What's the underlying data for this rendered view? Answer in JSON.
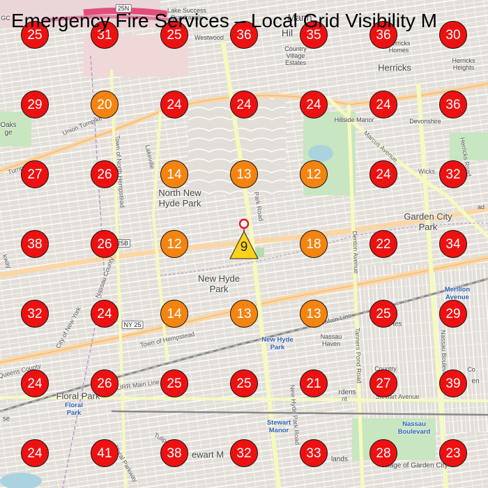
{
  "title": "Emergency Fire Services – Local Grid Visibility M",
  "colors": {
    "high": "#ee1111",
    "medium": "#f5840f",
    "station": "#ffd21a",
    "station_pin": "#d41a2c"
  },
  "grid": {
    "rows": [
      [
        25,
        31,
        25,
        36,
        35,
        36,
        30
      ],
      [
        29,
        20,
        24,
        24,
        24,
        24,
        36
      ],
      [
        27,
        26,
        14,
        13,
        12,
        24,
        32
      ],
      [
        38,
        26,
        12,
        9,
        18,
        22,
        34
      ],
      [
        32,
        24,
        14,
        13,
        13,
        25,
        29
      ],
      [
        24,
        26,
        25,
        25,
        21,
        27,
        39
      ],
      [
        24,
        41,
        38,
        32,
        33,
        28,
        23
      ]
    ],
    "station_value": 9
  },
  "map_labels": {
    "north_new_hyde_park": "North New\nHyde Park",
    "new_hyde_park": "New Hyde\nPark",
    "garden_city_park": "Garden City\nPark",
    "herricks": "Herricks",
    "herricks_small": "Herricks\nHomes",
    "herricks_heights": "Herricks\nHeights",
    "floral_park": "Floral Park",
    "hillside_manor": "Hillside Manor",
    "devonshire": "Devonshire",
    "country_village": "Country\nVillage\nEstates",
    "lake_success": "Lake Success\nQuadrangle",
    "westwood": "Westwood",
    "nassau_haven": "Nassau\nHaven",
    "oaks": "Oaks\nge",
    "park_road": "Park Road",
    "denton_avenue": "Denton Avenue",
    "tanners_pond": "Tanners Pond Road",
    "new_hyde_park_road": "New Hyde Park Road",
    "nassau_boulevard": "Nassau Boulevard",
    "herricks_road": "Herricks Road",
    "marcus_avenue": "Marcus Avenue",
    "union_turnpike": "Union Turnpike",
    "turnpike": "Turnpike",
    "lakeville": "Lakeville",
    "town_north": "Town of North Hempstead",
    "town_hempstead": "Town of Hempstead",
    "nassau_county": "Nassau County",
    "city_ny": "City of New York",
    "queens_county": "Queens County",
    "main_line": "Main Line",
    "lirr_main": "LIRR Main Line",
    "stewart_avenue": "Stewart Avenue",
    "tulip": "Tulip",
    "floral_parkway": "Floral Parkway",
    "kway": "kway",
    "wicks": "Wicks",
    "nt": "nt",
    "hwy_ny25": "NY 25",
    "hwy_25b": "25B",
    "hwy_25n": "25N",
    "station_nhp": "New Hyde\nPark",
    "station_floral": "Floral\nPark",
    "station_stewart": "Stewart\nManor",
    "station_nassau": "Nassau\nBoulevard",
    "station_merillon": "Merillon\nAvenue",
    "ewart": "ewart M",
    "village_gc": "Village of Garden City",
    "rdens": "rdens",
    "lands": "lands",
    "les": "les",
    "en": "en",
    "se": "se",
    "ad": "ad",
    "co": "Co",
    "country_life": "Country\nLife",
    "gc": "GC",
    "manh": "Manh",
    "hil": "Hil"
  }
}
